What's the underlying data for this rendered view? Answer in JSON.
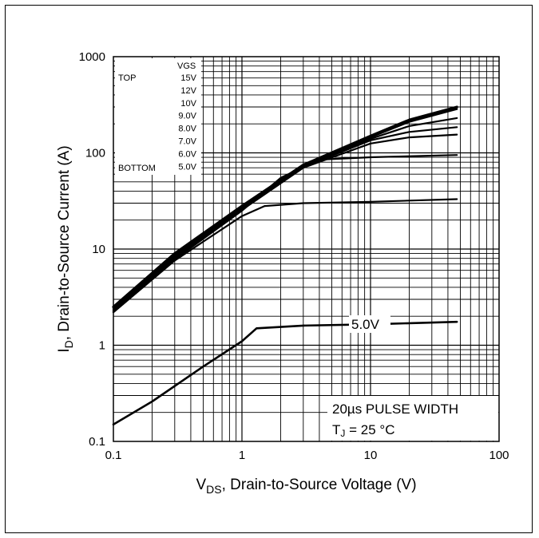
{
  "chart_data": {
    "type": "line",
    "x_scale": "log",
    "y_scale": "log",
    "xlim": [
      0.1,
      100
    ],
    "ylim": [
      0.1,
      1000
    ],
    "x_ticks": [
      "0.1",
      "1",
      "10",
      "100"
    ],
    "y_ticks": [
      "0.1",
      "1",
      "10",
      "100",
      "1000"
    ],
    "xlabel": {
      "main": "V",
      "sub": "DS",
      "rest": ", Drain-to-Source Voltage (V)"
    },
    "ylabel": {
      "main": "I",
      "sub": "D",
      "rest": ",  Drain-to-Source Current (A)"
    },
    "grid": true,
    "legend": {
      "placement": "top-left",
      "header": "VGS",
      "top_label": "TOP",
      "bottom_label": "BOTTOM",
      "entries": [
        "15V",
        "12V",
        "10V",
        "9.0V",
        "8.0V",
        "7.0V",
        "6.0V",
        "5.0V"
      ]
    },
    "annotations": {
      "curve_label": "5.0V",
      "pulse": "20µs PULSE WIDTH",
      "tj_main": "T",
      "tj_sub": "J",
      "tj_rest": " = 25 °C"
    },
    "series": [
      {
        "name": "15V",
        "x": [
          0.1,
          0.3,
          1,
          3,
          10,
          20,
          47
        ],
        "y": [
          2.5,
          9,
          28,
          75,
          150,
          220,
          300
        ]
      },
      {
        "name": "12V",
        "x": [
          0.1,
          0.3,
          1,
          3,
          10,
          20,
          47
        ],
        "y": [
          2.45,
          8.8,
          27.5,
          74,
          148,
          215,
          295
        ]
      },
      {
        "name": "10V",
        "x": [
          0.1,
          0.3,
          1,
          3,
          10,
          20,
          47
        ],
        "y": [
          2.4,
          8.6,
          27,
          73,
          145,
          210,
          285
        ]
      },
      {
        "name": "9.0V",
        "x": [
          0.1,
          0.3,
          1,
          3,
          10,
          20,
          47
        ],
        "y": [
          2.35,
          8.4,
          26.5,
          72,
          140,
          190,
          230
        ]
      },
      {
        "name": "8.0V",
        "x": [
          0.1,
          0.3,
          1,
          3,
          10,
          20,
          47
        ],
        "y": [
          2.3,
          8.2,
          26,
          71,
          135,
          165,
          185
        ]
      },
      {
        "name": "7.0V",
        "x": [
          0.1,
          0.3,
          1,
          3,
          10,
          20,
          47
        ],
        "y": [
          2.25,
          8.0,
          25.5,
          70,
          125,
          145,
          155
        ]
      },
      {
        "name": "6.0V",
        "x": [
          0.1,
          0.3,
          1,
          2,
          4,
          10,
          47
        ],
        "y": [
          2.2,
          7.8,
          25,
          55,
          85,
          90,
          95
        ]
      },
      {
        "name": "5.0V (upper)",
        "x": [
          0.1,
          0.3,
          1,
          1.5,
          3,
          10,
          47
        ],
        "y": [
          2.2,
          7.6,
          22,
          28,
          30,
          31,
          33
        ]
      },
      {
        "name": "5.0V",
        "x": [
          0.1,
          0.2,
          0.5,
          1,
          1.3,
          3,
          10,
          47
        ],
        "y": [
          0.15,
          0.26,
          0.6,
          1.1,
          1.5,
          1.6,
          1.65,
          1.75
        ]
      }
    ]
  }
}
